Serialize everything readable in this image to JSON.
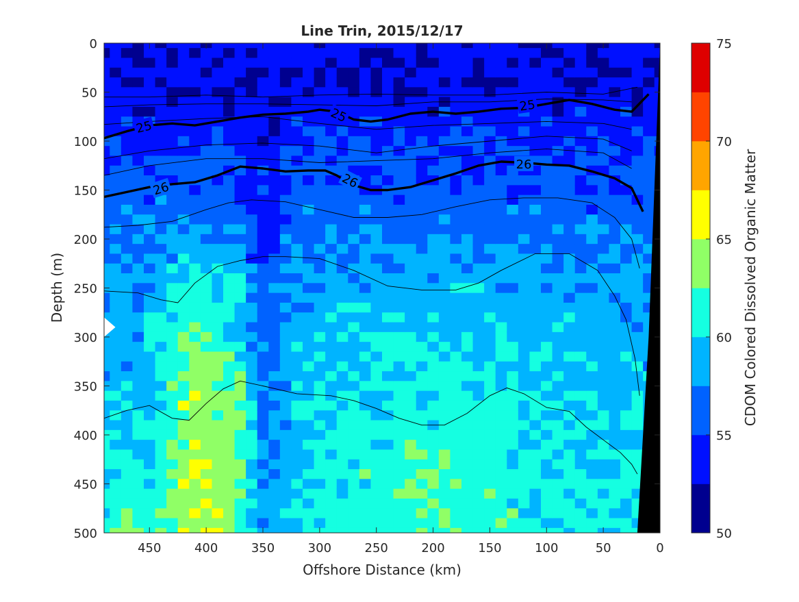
{
  "chart_data": {
    "type": "heatmap",
    "title": "Line Trin, 2015/12/17",
    "xlabel": "Offshore Distance (km)",
    "ylabel": "Depth (m)",
    "colorbar_label": "CDOM Colored Dissolved Organic Matter",
    "xlim": [
      490,
      0
    ],
    "ylim": [
      500,
      0
    ],
    "x_reversed": true,
    "y_reversed": true,
    "x_ticks": [
      "450",
      "400",
      "350",
      "300",
      "250",
      "200",
      "150",
      "100",
      "50",
      "0"
    ],
    "x_tick_values": [
      450,
      400,
      350,
      300,
      250,
      200,
      150,
      100,
      50,
      0
    ],
    "y_ticks": [
      "0",
      "50",
      "100",
      "150",
      "200",
      "250",
      "300",
      "350",
      "400",
      "450",
      "500"
    ],
    "y_tick_values": [
      0,
      50,
      100,
      150,
      200,
      250,
      300,
      350,
      400,
      450,
      500
    ],
    "color_range": [
      50,
      75
    ],
    "colorbar_ticks": [
      "50",
      "55",
      "60",
      "65",
      "70",
      "75"
    ],
    "colorbar_tick_values": [
      50,
      55,
      60,
      65,
      70,
      75
    ],
    "color_levels": [
      {
        "from": 50.0,
        "to": 52.5,
        "color": "#00008f"
      },
      {
        "from": 52.5,
        "to": 55.0,
        "color": "#0010ff"
      },
      {
        "from": 55.0,
        "to": 57.5,
        "color": "#0062ff"
      },
      {
        "from": 57.5,
        "to": 60.0,
        "color": "#00b4ff"
      },
      {
        "from": 60.0,
        "to": 62.5,
        "color": "#15ffe1"
      },
      {
        "from": 62.5,
        "to": 65.0,
        "color": "#90ff66"
      },
      {
        "from": 65.0,
        "to": 67.5,
        "color": "#ffff00"
      },
      {
        "from": 67.5,
        "to": 70.0,
        "color": "#ffa500"
      },
      {
        "from": 70.0,
        "to": 72.5,
        "color": "#ff4400"
      },
      {
        "from": 72.5,
        "to": 75.0,
        "color": "#de0000"
      }
    ],
    "contour_labels": [
      {
        "text": "25",
        "x": 455,
        "depth": 85,
        "angle": -14
      },
      {
        "text": "25",
        "x": 283,
        "depth": 73,
        "angle": 24
      },
      {
        "text": "25",
        "x": 117,
        "depth": 63,
        "angle": -8
      },
      {
        "text": "26",
        "x": 440,
        "depth": 148,
        "angle": -18
      },
      {
        "text": "26",
        "x": 273,
        "depth": 140,
        "angle": 27
      },
      {
        "text": "26",
        "x": 120,
        "depth": 123,
        "angle": 0
      }
    ],
    "isopycnals_bold": [
      {
        "x": [
          490,
          470,
          450,
          430,
          410,
          390,
          370,
          350,
          330,
          310,
          300,
          285,
          270,
          255,
          240,
          220,
          200,
          180,
          160,
          140,
          120,
          100,
          80,
          60,
          40,
          25,
          10
        ],
        "depth": [
          97,
          90,
          84,
          82,
          84,
          80,
          76,
          73,
          72,
          70,
          68,
          70,
          78,
          80,
          78,
          72,
          70,
          72,
          70,
          67,
          66,
          62,
          58,
          62,
          68,
          70,
          52
        ]
      },
      {
        "x": [
          490,
          470,
          450,
          430,
          410,
          390,
          370,
          350,
          330,
          310,
          295,
          285,
          270,
          255,
          240,
          220,
          200,
          180,
          160,
          140,
          120,
          100,
          80,
          60,
          40,
          25,
          15
        ],
        "depth": [
          157,
          152,
          147,
          144,
          142,
          135,
          126,
          128,
          131,
          130,
          130,
          135,
          145,
          150,
          150,
          147,
          140,
          133,
          125,
          121,
          122,
          124,
          125,
          131,
          138,
          148,
          172
        ]
      }
    ],
    "isopycnals_thin": [
      {
        "x": [
          490,
          450,
          400,
          350,
          300,
          250,
          200,
          150,
          100,
          50,
          20
        ],
        "depth": [
          55,
          55,
          53,
          55,
          53,
          52,
          53,
          53,
          50,
          52,
          45
        ]
      },
      {
        "x": [
          490,
          450,
          400,
          350,
          300,
          250,
          200,
          150,
          100,
          50,
          25
        ],
        "depth": [
          65,
          63,
          62,
          62,
          63,
          64,
          60,
          60,
          57,
          58,
          60
        ]
      },
      {
        "x": [
          490,
          450,
          400,
          350,
          300,
          250,
          200,
          150,
          100,
          50,
          25
        ],
        "depth": [
          83,
          80,
          77,
          75,
          82,
          88,
          84,
          82,
          80,
          82,
          88
        ]
      },
      {
        "x": [
          490,
          450,
          400,
          350,
          300,
          250,
          200,
          150,
          100,
          50,
          25
        ],
        "depth": [
          118,
          110,
          104,
          102,
          105,
          112,
          105,
          100,
          95,
          98,
          110
        ]
      },
      {
        "x": [
          490,
          450,
          400,
          350,
          300,
          250,
          200,
          150,
          100,
          50,
          25
        ],
        "depth": [
          135,
          125,
          118,
          118,
          122,
          120,
          118,
          112,
          108,
          112,
          128
        ]
      },
      {
        "x": [
          490,
          460,
          430,
          400,
          380,
          360,
          330,
          300,
          270,
          240,
          210,
          180,
          150,
          120,
          90,
          60,
          40,
          25,
          18
        ],
        "depth": [
          188,
          186,
          182,
          170,
          163,
          160,
          162,
          170,
          178,
          178,
          175,
          167,
          160,
          158,
          158,
          163,
          178,
          200,
          230
        ]
      },
      {
        "x": [
          490,
          460,
          440,
          425,
          410,
          390,
          370,
          350,
          330,
          300,
          270,
          240,
          210,
          180,
          160,
          140,
          110,
          80,
          55,
          40,
          30,
          22,
          18
        ],
        "depth": [
          253,
          255,
          262,
          265,
          245,
          228,
          222,
          218,
          218,
          220,
          232,
          248,
          252,
          252,
          245,
          232,
          215,
          215,
          232,
          258,
          282,
          322,
          360
        ]
      },
      {
        "x": [
          490,
          470,
          450,
          430,
          415,
          400,
          385,
          370,
          350,
          320,
          290,
          270,
          250,
          230,
          210,
          190,
          170,
          150,
          135,
          120,
          100,
          80,
          65,
          50,
          35,
          25,
          20
        ],
        "depth": [
          383,
          375,
          370,
          383,
          385,
          368,
          353,
          345,
          350,
          358,
          360,
          365,
          373,
          383,
          390,
          390,
          378,
          360,
          352,
          358,
          372,
          376,
          392,
          405,
          418,
          430,
          440
        ]
      }
    ],
    "seafloor": {
      "x": [
        20,
        10,
        0,
        0,
        25
      ],
      "depth": [
        500,
        300,
        0,
        500,
        500
      ]
    },
    "seafloor_color": "#000000",
    "missing_data_color": "#ffffff"
  }
}
